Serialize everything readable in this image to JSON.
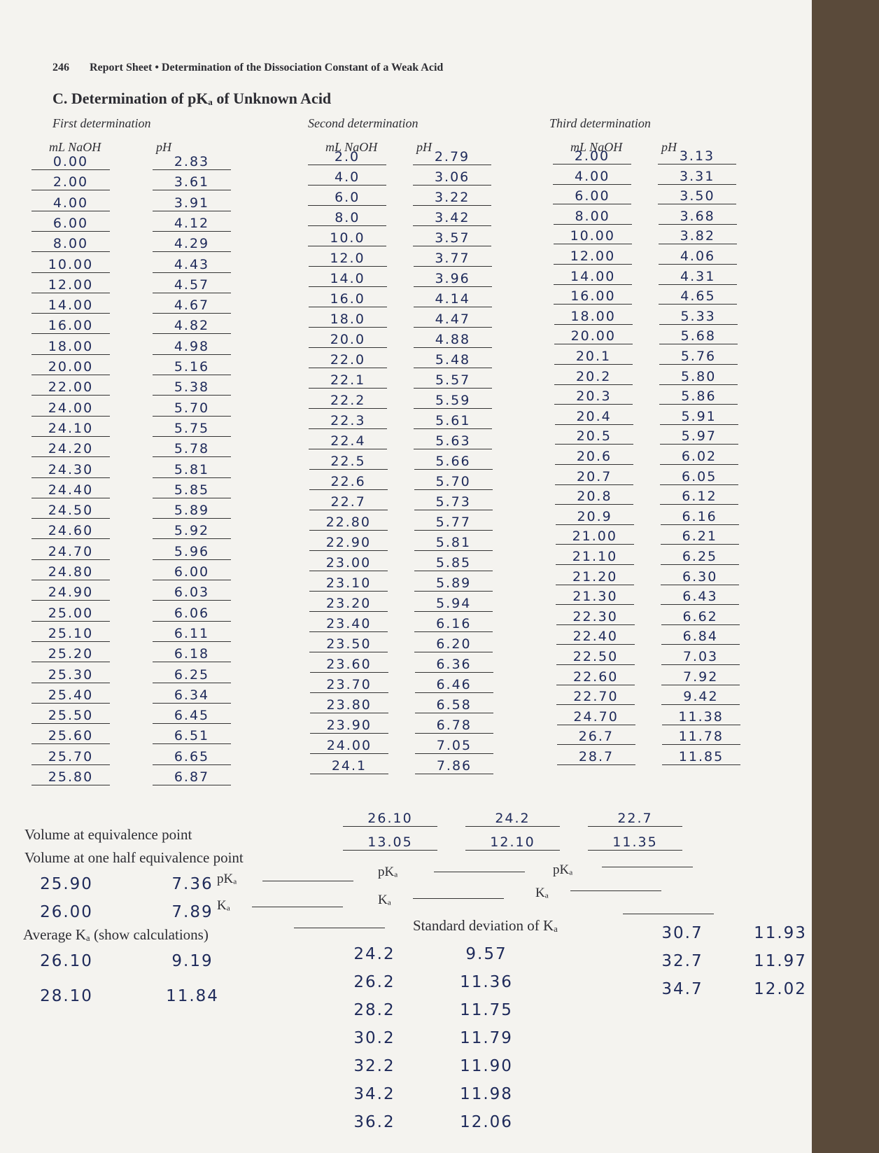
{
  "header": {
    "page_number": "246",
    "running_title": "Report Sheet • Determination of the Dissociation Constant of a Weak Acid"
  },
  "section_title": "C. Determination of pKₐ of Unknown Acid",
  "determinations": [
    {
      "label": "First determination",
      "columns": [
        "mL NaOH",
        "pH"
      ],
      "rows": [
        [
          "0.00",
          "2.83"
        ],
        [
          "2.00",
          "3.61"
        ],
        [
          "4.00",
          "3.91"
        ],
        [
          "6.00",
          "4.12"
        ],
        [
          "8.00",
          "4.29"
        ],
        [
          "10.00",
          "4.43"
        ],
        [
          "12.00",
          "4.57"
        ],
        [
          "14.00",
          "4.67"
        ],
        [
          "16.00",
          "4.82"
        ],
        [
          "18.00",
          "4.98"
        ],
        [
          "20.00",
          "5.16"
        ],
        [
          "22.00",
          "5.38"
        ],
        [
          "24.00",
          "5.70"
        ],
        [
          "24.10",
          "5.75"
        ],
        [
          "24.20",
          "5.78"
        ],
        [
          "24.30",
          "5.81"
        ],
        [
          "24.40",
          "5.85"
        ],
        [
          "24.50",
          "5.89"
        ],
        [
          "24.60",
          "5.92"
        ],
        [
          "24.70",
          "5.96"
        ],
        [
          "24.80",
          "6.00"
        ],
        [
          "24.90",
          "6.03"
        ],
        [
          "25.00",
          "6.06"
        ],
        [
          "25.10",
          "6.11"
        ],
        [
          "25.20",
          "6.18"
        ],
        [
          "25.30",
          "6.25"
        ],
        [
          "25.40",
          "6.34"
        ],
        [
          "25.50",
          "6.45"
        ],
        [
          "25.60",
          "6.51"
        ],
        [
          "25.70",
          "6.65"
        ],
        [
          "25.80",
          "6.87"
        ]
      ]
    },
    {
      "label": "Second determination",
      "columns": [
        "mL NaOH",
        "pH"
      ],
      "rows": [
        [
          "2.0",
          "2.79"
        ],
        [
          "4.0",
          "3.06"
        ],
        [
          "6.0",
          "3.22"
        ],
        [
          "8.0",
          "3.42"
        ],
        [
          "10.0",
          "3.57"
        ],
        [
          "12.0",
          "3.77"
        ],
        [
          "14.0",
          "3.96"
        ],
        [
          "16.0",
          "4.14"
        ],
        [
          "18.0",
          "4.47"
        ],
        [
          "20.0",
          "4.88"
        ],
        [
          "22.0",
          "5.48"
        ],
        [
          "22.1",
          "5.57"
        ],
        [
          "22.2",
          "5.59"
        ],
        [
          "22.3",
          "5.61"
        ],
        [
          "22.4",
          "5.63"
        ],
        [
          "22.5",
          "5.66"
        ],
        [
          "22.6",
          "5.70"
        ],
        [
          "22.7",
          "5.73"
        ],
        [
          "22.80",
          "5.77"
        ],
        [
          "22.90",
          "5.81"
        ],
        [
          "23.00",
          "5.85"
        ],
        [
          "23.10",
          "5.89"
        ],
        [
          "23.20",
          "5.94"
        ],
        [
          "23.40",
          "6.16"
        ],
        [
          "23.50",
          "6.20"
        ],
        [
          "23.60",
          "6.36"
        ],
        [
          "23.70",
          "6.46"
        ],
        [
          "23.80",
          "6.58"
        ],
        [
          "23.90",
          "6.78"
        ],
        [
          "24.00",
          "7.05"
        ],
        [
          "24.1",
          "7.86"
        ]
      ]
    },
    {
      "label": "Third determination",
      "columns": [
        "mL NaOH",
        "pH"
      ],
      "rows": [
        [
          "2.00",
          "3.13"
        ],
        [
          "4.00",
          "3.31"
        ],
        [
          "6.00",
          "3.50"
        ],
        [
          "8.00",
          "3.68"
        ],
        [
          "10.00",
          "3.82"
        ],
        [
          "12.00",
          "4.06"
        ],
        [
          "14.00",
          "4.31"
        ],
        [
          "16.00",
          "4.65"
        ],
        [
          "18.00",
          "5.33"
        ],
        [
          "20.00",
          "5.68"
        ],
        [
          "20.1",
          "5.76"
        ],
        [
          "20.2",
          "5.80"
        ],
        [
          "20.3",
          "5.86"
        ],
        [
          "20.4",
          "5.91"
        ],
        [
          "20.5",
          "5.97"
        ],
        [
          "20.6",
          "6.02"
        ],
        [
          "20.7",
          "6.05"
        ],
        [
          "20.8",
          "6.12"
        ],
        [
          "20.9",
          "6.16"
        ],
        [
          "21.00",
          "6.21"
        ],
        [
          "21.10",
          "6.25"
        ],
        [
          "21.20",
          "6.30"
        ],
        [
          "21.30",
          "6.43"
        ],
        [
          "22.30",
          "6.62"
        ],
        [
          "22.40",
          "6.84"
        ],
        [
          "22.50",
          "7.03"
        ],
        [
          "22.60",
          "7.92"
        ],
        [
          "22.70",
          "9.42"
        ],
        [
          "24.70",
          "11.38"
        ],
        [
          "26.7",
          "11.78"
        ],
        [
          "28.7",
          "11.85"
        ]
      ]
    }
  ],
  "results": {
    "equivalence_label": "Volume at equivalence point",
    "equivalence_volume": [
      "26.10",
      "24.2",
      "22.7"
    ],
    "half_label": "Volume at one half equivalence point",
    "half_volume": [
      "13.05",
      "12.10",
      "11.35"
    ],
    "pka_label": "pKₐ",
    "ka_label": "Kₐ",
    "average_label": "Average Kₐ (show calculations)",
    "stdev_label": "Standard deviation of Kₐ"
  },
  "extra_readings": [
    [
      [
        "25.90",
        "7.36"
      ],
      [
        "26.00",
        "7.89"
      ],
      [
        "26.10",
        "9.19"
      ],
      [
        "28.10",
        "11.84"
      ]
    ],
    [
      [
        "24.2",
        "9.57"
      ],
      [
        "26.2",
        "11.36"
      ],
      [
        "28.2",
        "11.75"
      ],
      [
        "30.2",
        "11.79"
      ],
      [
        "32.2",
        "11.90"
      ],
      [
        "34.2",
        "11.98"
      ],
      [
        "36.2",
        "12.06"
      ]
    ],
    [
      [
        "30.7",
        "11.93"
      ],
      [
        "32.7",
        "11.97"
      ],
      [
        "34.7",
        "12.02"
      ]
    ]
  ]
}
